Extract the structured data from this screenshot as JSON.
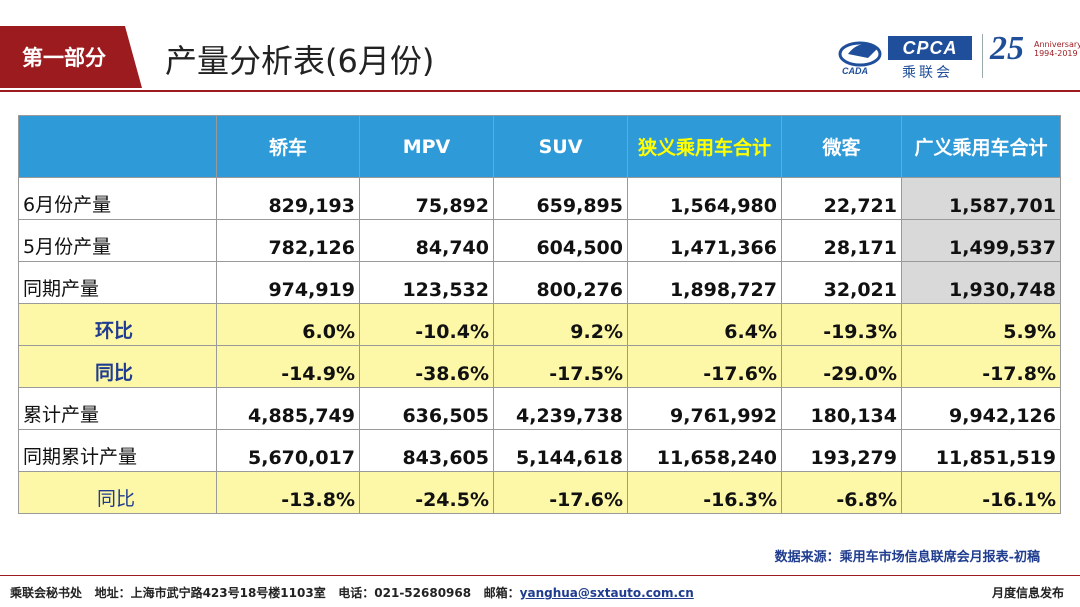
{
  "header": {
    "section_tag": "第一部分",
    "title": "产量分析表(6月份)",
    "logos": {
      "cada_text": "CADA",
      "cpca_text": "CPCA",
      "cpca_cn": "乘联会",
      "anniversary_number": "25",
      "anniversary_text": "Anniversary",
      "anniversary_years": "1994-2019"
    }
  },
  "table": {
    "columns": [
      "",
      "轿车",
      "MPV",
      "SUV",
      "狭义乘用车合计",
      "微客",
      "广义乘用车合计"
    ],
    "rows": [
      {
        "label": "6月份产量",
        "values": [
          "829,193",
          "75,892",
          "659,895",
          "1,564,980",
          "22,721",
          "1,587,701"
        ],
        "style": "normal"
      },
      {
        "label": "5月份产量",
        "values": [
          "782,126",
          "84,740",
          "604,500",
          "1,471,366",
          "28,171",
          "1,499,537"
        ],
        "style": "normal"
      },
      {
        "label": "同期产量",
        "values": [
          "974,919",
          "123,532",
          "800,276",
          "1,898,727",
          "32,021",
          "1,930,748"
        ],
        "style": "normal"
      },
      {
        "label": "环比",
        "values": [
          "6.0%",
          "-10.4%",
          "9.2%",
          "6.4%",
          "-19.3%",
          "5.9%"
        ],
        "style": "yellow"
      },
      {
        "label": "同比",
        "values": [
          "-14.9%",
          "-38.6%",
          "-17.5%",
          "-17.6%",
          "-29.0%",
          "-17.8%"
        ],
        "style": "yellow"
      },
      {
        "label": "累计产量",
        "values": [
          "4,885,749",
          "636,505",
          "4,239,738",
          "9,761,992",
          "180,134",
          "9,942,126"
        ],
        "style": "normal"
      },
      {
        "label": "同期累计产量",
        "values": [
          "5,670,017",
          "843,605",
          "5,144,618",
          "11,658,240",
          "193,279",
          "11,851,519"
        ],
        "style": "normal"
      },
      {
        "label": "同比",
        "values": [
          "-13.8%",
          "-24.5%",
          "-17.6%",
          "-16.3%",
          "-6.8%",
          "-16.1%"
        ],
        "style": "yellow"
      }
    ]
  },
  "source_note": "数据来源：乘用车市场信息联席会月报表-初稿",
  "footer": {
    "org": "乘联会秘书处",
    "address": "地址：上海市武宁路423号18号楼1103室",
    "phone": "电话：021-52680968",
    "email_label": "邮箱：",
    "email": "yanghua@sxtauto.com.cn",
    "right": "月度信息发布"
  },
  "colors": {
    "brand_red": "#9b1b1f",
    "header_blue": "#2f9ad8",
    "highlight_yellow_text": "#ffff00",
    "yellow_row": "#fdf7a8",
    "gray_cell": "#d9d9d9",
    "label_navy": "#1f3c8f"
  }
}
